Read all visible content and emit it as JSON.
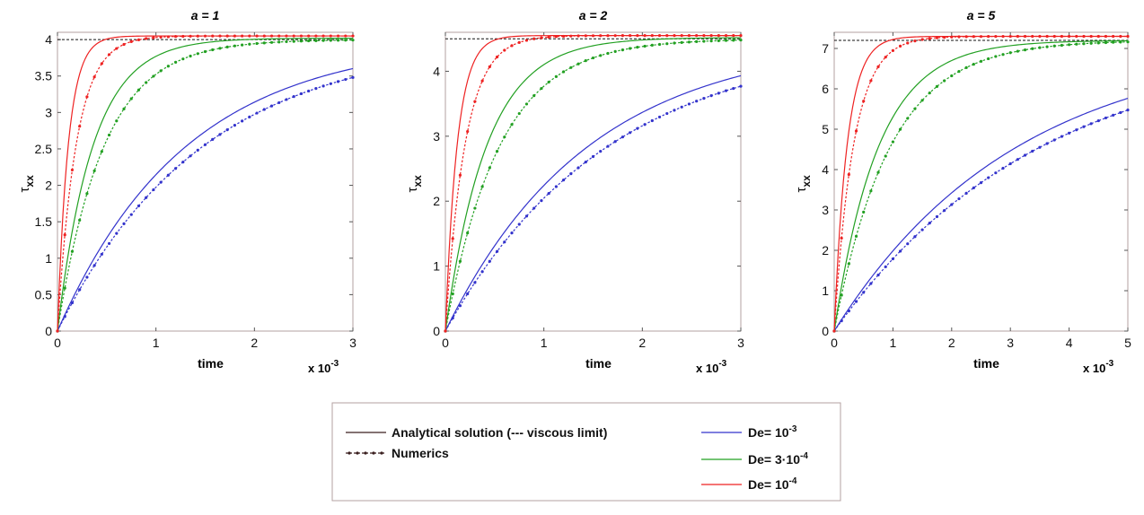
{
  "chart_data": [
    {
      "type": "line",
      "title": "a = 1",
      "xlabel": "time",
      "ylabel": "τxx",
      "x_multiplier_label": "x 10-3",
      "xlim": [
        0,
        0.003
      ],
      "ylim": [
        0,
        4.1
      ],
      "xticks": [
        0,
        1,
        2,
        3
      ],
      "yticks": [
        "0",
        "0.5",
        "1",
        "1.5",
        "2",
        "2.5",
        "3",
        "3.5",
        "4"
      ],
      "viscous_limit": 4.0,
      "series": [
        {
          "name": "De= 10-3",
          "color": "#3333cc",
          "kind": "analytical",
          "tau": 0.0013,
          "limit": 4.0
        },
        {
          "name": "De= 10-3",
          "color": "#3333cc",
          "kind": "numerics",
          "tau": 0.00147,
          "limit": 4.0
        },
        {
          "name": "De= 3·10-4",
          "color": "#22a022",
          "kind": "analytical",
          "tau": 0.00036,
          "limit": 4.02
        },
        {
          "name": "De= 3·10-4",
          "color": "#22a022",
          "kind": "numerics",
          "tau": 0.00047,
          "limit": 4.0
        },
        {
          "name": "De= 10-4",
          "color": "#ee2222",
          "kind": "analytical",
          "tau": 0.00011,
          "limit": 4.05
        },
        {
          "name": "De= 10-4",
          "color": "#ee2222",
          "kind": "numerics",
          "tau": 0.00019,
          "limit": 4.05
        }
      ]
    },
    {
      "type": "line",
      "title": "a = 2",
      "xlabel": "time",
      "ylabel": "τxx",
      "x_multiplier_label": "x 10-3",
      "xlim": [
        0,
        0.003
      ],
      "ylim": [
        0,
        4.6
      ],
      "xticks": [
        0,
        1,
        2,
        3
      ],
      "yticks": [
        "0",
        "1",
        "2",
        "3",
        "4"
      ],
      "viscous_limit": 4.5,
      "series": [
        {
          "name": "De= 10-3",
          "color": "#3333cc",
          "kind": "analytical",
          "tau": 0.00145,
          "limit": 4.5
        },
        {
          "name": "De= 10-3",
          "color": "#3333cc",
          "kind": "numerics",
          "tau": 0.00165,
          "limit": 4.5
        },
        {
          "name": "De= 3·10-4",
          "color": "#22a022",
          "kind": "analytical",
          "tau": 0.00042,
          "limit": 4.52
        },
        {
          "name": "De= 3·10-4",
          "color": "#22a022",
          "kind": "numerics",
          "tau": 0.00055,
          "limit": 4.5
        },
        {
          "name": "De= 10-4",
          "color": "#ee2222",
          "kind": "analytical",
          "tau": 0.00012,
          "limit": 4.55
        },
        {
          "name": "De= 10-4",
          "color": "#ee2222",
          "kind": "numerics",
          "tau": 0.0002,
          "limit": 4.55
        }
      ]
    },
    {
      "type": "line",
      "title": "a = 5",
      "xlabel": "time",
      "ylabel": "τxx",
      "x_multiplier_label": "x 10-3",
      "xlim": [
        0,
        0.005
      ],
      "ylim": [
        0,
        7.4
      ],
      "xticks": [
        0,
        1,
        2,
        3,
        4,
        5
      ],
      "yticks": [
        "0",
        "1",
        "2",
        "3",
        "4",
        "5",
        "6",
        "7"
      ],
      "viscous_limit": 7.2,
      "series": [
        {
          "name": "De= 10-3",
          "color": "#3333cc",
          "kind": "analytical",
          "tau": 0.0031,
          "limit": 7.2
        },
        {
          "name": "De= 10-3",
          "color": "#3333cc",
          "kind": "numerics",
          "tau": 0.0035,
          "limit": 7.2
        },
        {
          "name": "De= 3·10-4",
          "color": "#22a022",
          "kind": "analytical",
          "tau": 0.00075,
          "limit": 7.2
        },
        {
          "name": "De= 3·10-4",
          "color": "#22a022",
          "kind": "numerics",
          "tau": 0.00095,
          "limit": 7.2
        },
        {
          "name": "De= 10-4",
          "color": "#ee2222",
          "kind": "analytical",
          "tau": 0.00022,
          "limit": 7.3
        },
        {
          "name": "De= 10-4",
          "color": "#ee2222",
          "kind": "numerics",
          "tau": 0.00033,
          "limit": 7.3
        }
      ]
    }
  ],
  "legend": {
    "analytical_label": "Analytical solution (--- viscous limit)",
    "numerics_label": "Numerics",
    "entries": [
      {
        "base": "De= 10",
        "sup": "-3",
        "color": "#3333cc"
      },
      {
        "base": "De= 3·10",
        "sup": "-4",
        "color": "#22a022"
      },
      {
        "base": "De= 10",
        "sup": "-4",
        "color": "#ee2222"
      }
    ]
  }
}
